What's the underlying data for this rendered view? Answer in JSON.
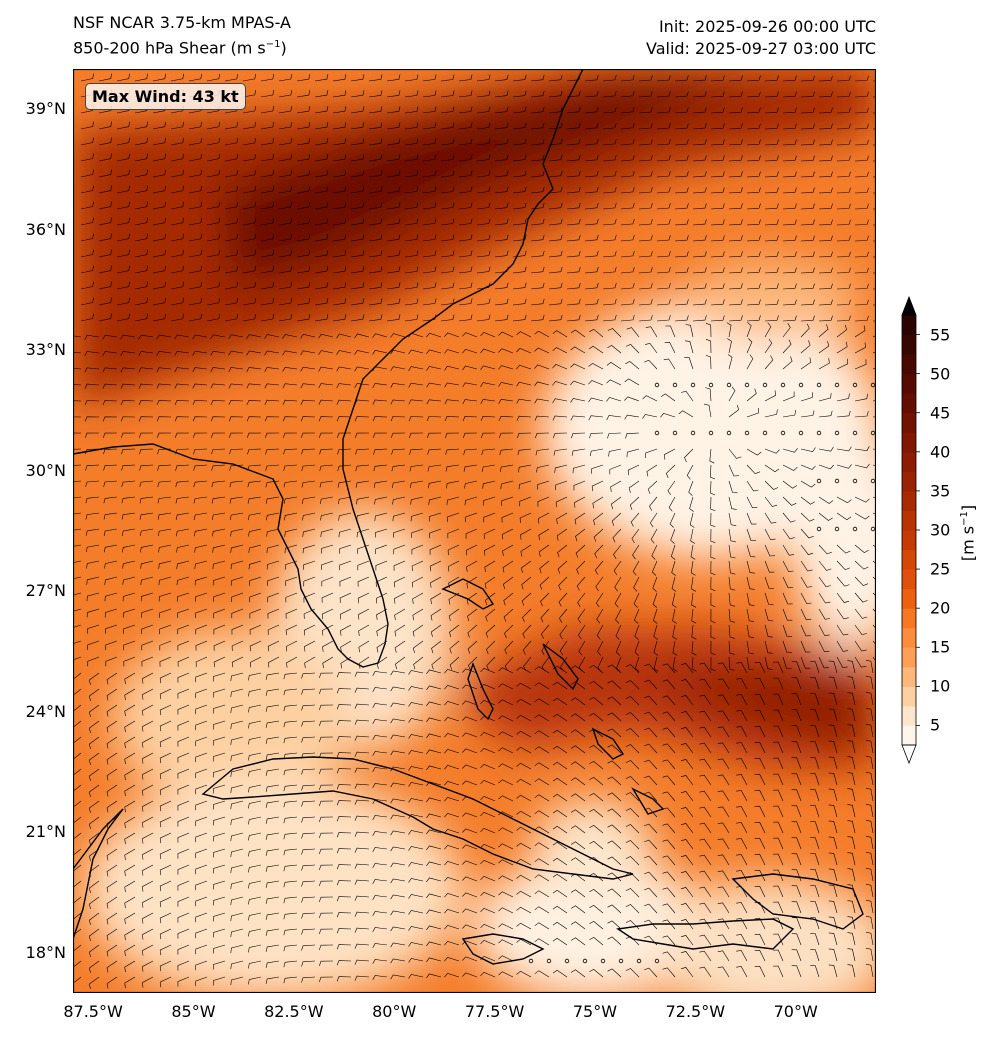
{
  "header": {
    "model_line": "NSF NCAR 3.75-km MPAS-A",
    "field_line_prefix": "850-200 hPa Shear (m s",
    "field_line_exp": "−1",
    "field_line_suffix": ")",
    "init_line": "Init: 2025-09-26 00:00 UTC",
    "valid_line": "Valid: 2025-09-27 03:00 UTC"
  },
  "annotation": {
    "max_wind": "Max Wind: 43 kt"
  },
  "map": {
    "lon_range": [
      -88,
      -68
    ],
    "lat_range": [
      17,
      40
    ],
    "lat_ticks": [
      {
        "value": 39,
        "label": "39°N"
      },
      {
        "value": 36,
        "label": "36°N"
      },
      {
        "value": 33,
        "label": "33°N"
      },
      {
        "value": 30,
        "label": "30°N"
      },
      {
        "value": 27,
        "label": "27°N"
      },
      {
        "value": 24,
        "label": "24°N"
      },
      {
        "value": 21,
        "label": "21°N"
      },
      {
        "value": 18,
        "label": "18°N"
      }
    ],
    "lon_ticks": [
      {
        "value": -87.5,
        "label": "87.5°W"
      },
      {
        "value": -85,
        "label": "85°W"
      },
      {
        "value": -82.5,
        "label": "82.5°W"
      },
      {
        "value": -80,
        "label": "80°W"
      },
      {
        "value": -77.5,
        "label": "77.5°W"
      },
      {
        "value": -75,
        "label": "75°W"
      },
      {
        "value": -72.5,
        "label": "72.5°W"
      },
      {
        "value": -70,
        "label": "70°W"
      }
    ],
    "coastline_color": "#000000",
    "barb_color": "#000000"
  },
  "colorbar": {
    "label_prefix": "[m s",
    "label_exp": "−1",
    "label_suffix": "]",
    "ticks": [
      5,
      10,
      15,
      20,
      25,
      30,
      35,
      40,
      45,
      50,
      55
    ],
    "extend": "both",
    "levels": [
      2.5,
      5,
      7.5,
      10,
      12.5,
      15,
      17.5,
      20,
      22.5,
      25,
      27.5,
      30,
      32.5,
      35,
      37.5,
      40,
      42.5,
      45,
      47.5,
      50,
      52.5,
      55,
      57.5
    ],
    "colors": [
      "#fff5eb",
      "#fee6ce",
      "#fdd0a2",
      "#fdb77a",
      "#fda057",
      "#fd8d3c",
      "#f67824",
      "#ec6010",
      "#e0500a",
      "#d54704",
      "#c53a03",
      "#b83203",
      "#a82a02",
      "#9a2303",
      "#8c1d04",
      "#7f1702",
      "#721202",
      "#640e02",
      "#550b02",
      "#470801",
      "#380601",
      "#2a0400",
      "#000000"
    ]
  }
}
